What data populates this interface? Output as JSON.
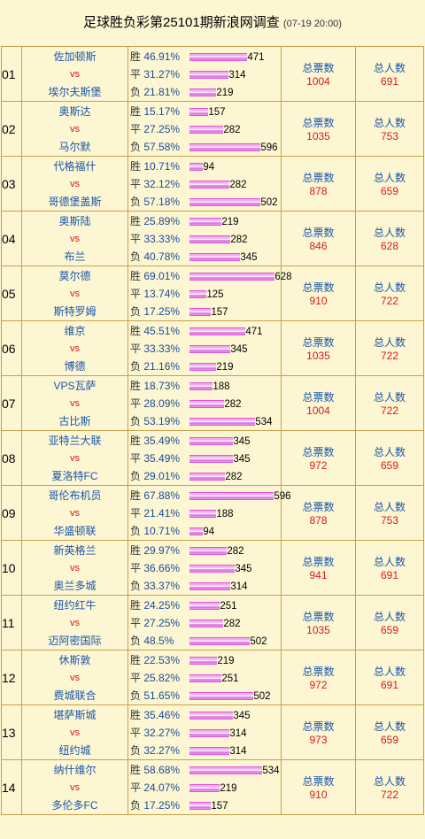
{
  "header": {
    "title": "足球胜负彩第25101期新浪网调查",
    "time": "(07-19 20:00)"
  },
  "labels": {
    "vs": "vs",
    "win": "胜",
    "draw": "平",
    "loss": "负",
    "total_votes": "总票数",
    "total_people": "总人数"
  },
  "matches": [
    {
      "no": "01",
      "home": "佐加顿斯",
      "away": "埃尔夫斯堡",
      "win_pct": "46.91%",
      "win_count": "471",
      "win_frac": 0.469,
      "draw_pct": "31.27%",
      "draw_count": "314",
      "draw_frac": 0.313,
      "loss_pct": "21.81%",
      "loss_count": "219",
      "loss_frac": 0.218,
      "votes": "1004",
      "people": "691"
    },
    {
      "no": "02",
      "home": "奥斯达",
      "away": "马尔默",
      "win_pct": "15.17%",
      "win_count": "157",
      "win_frac": 0.152,
      "draw_pct": "27.25%",
      "draw_count": "282",
      "draw_frac": 0.273,
      "loss_pct": "57.58%",
      "loss_count": "596",
      "loss_frac": 0.576,
      "votes": "1035",
      "people": "753"
    },
    {
      "no": "03",
      "home": "代格福什",
      "away": "哥德堡盖斯",
      "win_pct": "10.71%",
      "win_count": "94",
      "win_frac": 0.107,
      "draw_pct": "32.12%",
      "draw_count": "282",
      "draw_frac": 0.321,
      "loss_pct": "57.18%",
      "loss_count": "502",
      "loss_frac": 0.572,
      "votes": "878",
      "people": "659"
    },
    {
      "no": "04",
      "home": "奥斯陆",
      "away": "布兰",
      "win_pct": "25.89%",
      "win_count": "219",
      "win_frac": 0.259,
      "draw_pct": "33.33%",
      "draw_count": "282",
      "draw_frac": 0.333,
      "loss_pct": "40.78%",
      "loss_count": "345",
      "loss_frac": 0.408,
      "votes": "846",
      "people": "628"
    },
    {
      "no": "05",
      "home": "莫尔德",
      "away": "斯特罗姆",
      "win_pct": "69.01%",
      "win_count": "628",
      "win_frac": 0.69,
      "draw_pct": "13.74%",
      "draw_count": "125",
      "draw_frac": 0.137,
      "loss_pct": "17.25%",
      "loss_count": "157",
      "loss_frac": 0.173,
      "votes": "910",
      "people": "722"
    },
    {
      "no": "06",
      "home": "维京",
      "away": "博德",
      "win_pct": "45.51%",
      "win_count": "471",
      "win_frac": 0.455,
      "draw_pct": "33.33%",
      "draw_count": "345",
      "draw_frac": 0.333,
      "loss_pct": "21.16%",
      "loss_count": "219",
      "loss_frac": 0.212,
      "votes": "1035",
      "people": "722"
    },
    {
      "no": "07",
      "home": "VPS瓦萨",
      "away": "古比斯",
      "win_pct": "18.73%",
      "win_count": "188",
      "win_frac": 0.187,
      "draw_pct": "28.09%",
      "draw_count": "282",
      "draw_frac": 0.281,
      "loss_pct": "53.19%",
      "loss_count": "534",
      "loss_frac": 0.532,
      "votes": "1004",
      "people": "722"
    },
    {
      "no": "08",
      "home": "亚特兰大联",
      "away": "夏洛特FC",
      "win_pct": "35.49%",
      "win_count": "345",
      "win_frac": 0.355,
      "draw_pct": "35.49%",
      "draw_count": "345",
      "draw_frac": 0.355,
      "loss_pct": "29.01%",
      "loss_count": "282",
      "loss_frac": 0.29,
      "votes": "972",
      "people": "659"
    },
    {
      "no": "09",
      "home": "哥伦布机员",
      "away": "华盛顿联",
      "win_pct": "67.88%",
      "win_count": "596",
      "win_frac": 0.679,
      "draw_pct": "21.41%",
      "draw_count": "188",
      "draw_frac": 0.214,
      "loss_pct": "10.71%",
      "loss_count": "94",
      "loss_frac": 0.107,
      "votes": "878",
      "people": "753"
    },
    {
      "no": "10",
      "home": "新英格兰",
      "away": "奥兰多城",
      "win_pct": "29.97%",
      "win_count": "282",
      "win_frac": 0.3,
      "draw_pct": "36.66%",
      "draw_count": "345",
      "draw_frac": 0.367,
      "loss_pct": "33.37%",
      "loss_count": "314",
      "loss_frac": 0.334,
      "votes": "941",
      "people": "691"
    },
    {
      "no": "11",
      "home": "纽约红牛",
      "away": "迈阿密国际",
      "win_pct": "24.25%",
      "win_count": "251",
      "win_frac": 0.243,
      "draw_pct": "27.25%",
      "draw_count": "282",
      "draw_frac": 0.273,
      "loss_pct": " 48.5%",
      "loss_count": "502",
      "loss_frac": 0.485,
      "votes": "1035",
      "people": "659"
    },
    {
      "no": "12",
      "home": "休斯敦",
      "away": "费城联合",
      "win_pct": "22.53%",
      "win_count": "219",
      "win_frac": 0.225,
      "draw_pct": "25.82%",
      "draw_count": "251",
      "draw_frac": 0.258,
      "loss_pct": "51.65%",
      "loss_count": "502",
      "loss_frac": 0.517,
      "votes": "972",
      "people": "691"
    },
    {
      "no": "13",
      "home": "堪萨斯城",
      "away": "纽约城",
      "win_pct": "35.46%",
      "win_count": "345",
      "win_frac": 0.355,
      "draw_pct": "32.27%",
      "draw_count": "314",
      "draw_frac": 0.323,
      "loss_pct": "32.27%",
      "loss_count": "314",
      "loss_frac": 0.323,
      "votes": "973",
      "people": "659"
    },
    {
      "no": "14",
      "home": "纳什维尔",
      "away": "多伦多FC",
      "win_pct": "58.68%",
      "win_count": "534",
      "win_frac": 0.587,
      "draw_pct": "24.07%",
      "draw_count": "219",
      "draw_frac": 0.241,
      "loss_pct": "17.25%",
      "loss_count": "157",
      "loss_frac": 0.173,
      "votes": "910",
      "people": "722"
    }
  ]
}
